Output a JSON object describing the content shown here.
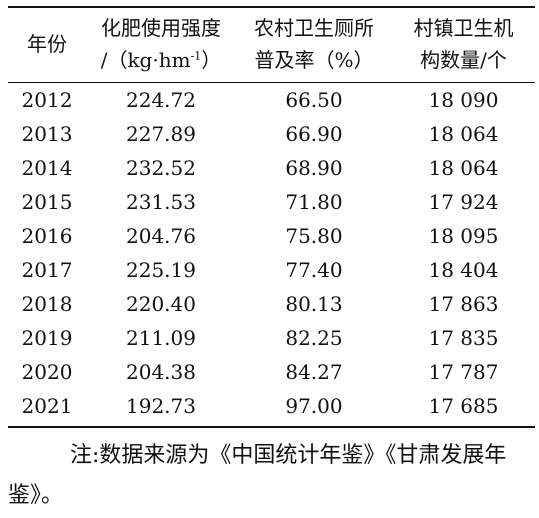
{
  "table": {
    "header": {
      "year": "年份",
      "fertilizer_line1": "化肥使用强度",
      "fertilizer_line2_pre": "/（kg·hm",
      "fertilizer_line2_sup": "-1",
      "fertilizer_line2_post": "）",
      "toilet_line1": "农村卫生厕所",
      "toilet_line2": "普及率（%）",
      "clinic_line1": "村镇卫生机",
      "clinic_line2": "构数量/个"
    },
    "rows": [
      {
        "year": "2012",
        "fertilizer": "224.72",
        "toilet": "66.50",
        "clinics": "18 090"
      },
      {
        "year": "2013",
        "fertilizer": "227.89",
        "toilet": "66.90",
        "clinics": "18 064"
      },
      {
        "year": "2014",
        "fertilizer": "232.52",
        "toilet": "68.90",
        "clinics": "18 064"
      },
      {
        "year": "2015",
        "fertilizer": "231.53",
        "toilet": "71.80",
        "clinics": "17 924"
      },
      {
        "year": "2016",
        "fertilizer": "204.76",
        "toilet": "75.80",
        "clinics": "18 095"
      },
      {
        "year": "2017",
        "fertilizer": "225.19",
        "toilet": "77.40",
        "clinics": "18 404"
      },
      {
        "year": "2018",
        "fertilizer": "220.40",
        "toilet": "80.13",
        "clinics": "17 863"
      },
      {
        "year": "2019",
        "fertilizer": "211.09",
        "toilet": "82.25",
        "clinics": "17 835"
      },
      {
        "year": "2020",
        "fertilizer": "204.38",
        "toilet": "84.27",
        "clinics": "17 787"
      },
      {
        "year": "2021",
        "fertilizer": "192.73",
        "toilet": "97.00",
        "clinics": "17 685"
      }
    ]
  },
  "note": "注:数据来源为《中国统计年鉴》《甘肃发展年鉴》。"
}
